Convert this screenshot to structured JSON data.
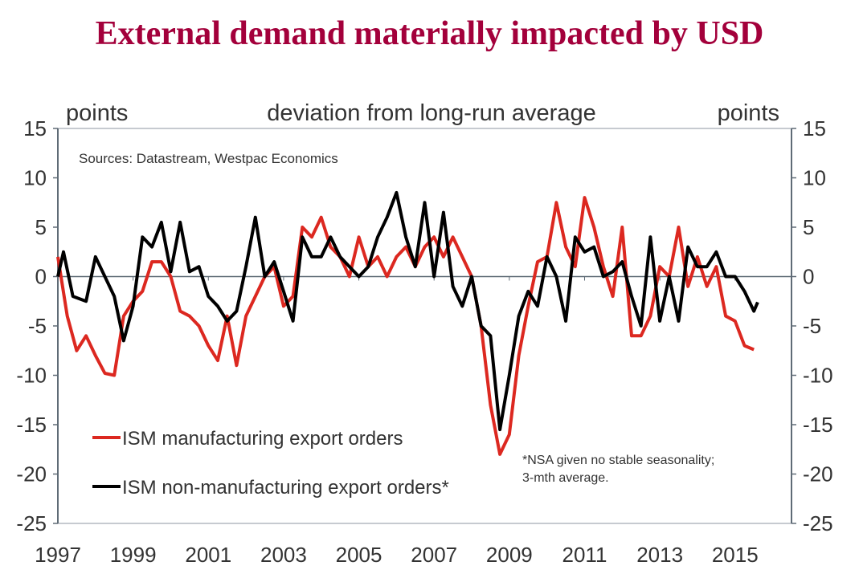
{
  "chart_data": {
    "type": "line",
    "title": "External demand materially impacted by USD",
    "ylabel_left": "points",
    "ylabel_right": "points",
    "subtitle": "deviation from long-run average",
    "source": "Sources: Datastream, Westpac Economics",
    "note_lines": [
      "*NSA given no stable seasonality;",
      "3-mth average."
    ],
    "xlim": [
      1997,
      2016.5
    ],
    "ylim": [
      -25,
      15
    ],
    "yticks": [
      15,
      10,
      5,
      0,
      -5,
      -10,
      -15,
      -20,
      -25
    ],
    "xticks": [
      1997,
      1999,
      2001,
      2003,
      2005,
      2007,
      2009,
      2011,
      2013,
      2015
    ],
    "grid": false,
    "legend_placement": "bottom-left",
    "series": [
      {
        "name": "ISM manufacturing export orders",
        "color": "#dc2820",
        "x": [
          1997,
          1997.25,
          1997.5,
          1997.75,
          1998,
          1998.25,
          1998.5,
          1998.75,
          1999,
          1999.25,
          1999.5,
          1999.75,
          2000,
          2000.25,
          2000.5,
          2000.75,
          2001,
          2001.25,
          2001.5,
          2001.75,
          2002,
          2002.25,
          2002.5,
          2002.75,
          2003,
          2003.25,
          2003.5,
          2003.75,
          2004,
          2004.25,
          2004.5,
          2004.75,
          2005,
          2005.25,
          2005.5,
          2005.75,
          2006,
          2006.25,
          2006.5,
          2006.75,
          2007,
          2007.25,
          2007.5,
          2007.75,
          2008,
          2008.25,
          2008.5,
          2008.75,
          2009,
          2009.25,
          2009.5,
          2009.75,
          2010,
          2010.25,
          2010.5,
          2010.75,
          2011,
          2011.25,
          2011.5,
          2011.75,
          2012,
          2012.25,
          2012.5,
          2012.75,
          2013,
          2013.25,
          2013.5,
          2013.75,
          2014,
          2014.25,
          2014.5,
          2014.75,
          2015,
          2015.25,
          2015.5
        ],
        "values": [
          2,
          -4,
          -7.5,
          -6,
          -8,
          -9.8,
          -10,
          -4,
          -2.5,
          -1.5,
          1.5,
          1.5,
          0,
          -3.5,
          -4,
          -5,
          -7,
          -8.5,
          -4,
          -9,
          -4,
          -2,
          0,
          1,
          -3,
          -2,
          5,
          4,
          6,
          3,
          2,
          0,
          4,
          1,
          2,
          0,
          2,
          3,
          1,
          3,
          4,
          2,
          4,
          2,
          0,
          -5,
          -13,
          -18,
          -16,
          -8,
          -3,
          1.5,
          2,
          7.5,
          3,
          1,
          8,
          5,
          1,
          -2,
          5,
          -6,
          -6,
          -4,
          1,
          0,
          5,
          -1,
          2,
          -1,
          1,
          -4,
          -4.5,
          -7,
          -7.4
        ]
      },
      {
        "name": "ISM non-manufacturing export orders*",
        "color": "#000000",
        "x": [
          1997,
          1997.15,
          1997.4,
          1997.75,
          1998,
          1998.25,
          1998.5,
          1998.75,
          1999,
          1999.25,
          1999.5,
          1999.75,
          2000,
          2000.25,
          2000.5,
          2000.75,
          2001,
          2001.25,
          2001.5,
          2001.75,
          2002,
          2002.25,
          2002.5,
          2002.75,
          2003,
          2003.25,
          2003.5,
          2003.75,
          2004,
          2004.25,
          2004.5,
          2004.75,
          2005,
          2005.25,
          2005.5,
          2005.75,
          2006,
          2006.25,
          2006.5,
          2006.75,
          2007,
          2007.25,
          2007.5,
          2007.75,
          2008,
          2008.25,
          2008.5,
          2008.75,
          2009,
          2009.25,
          2009.5,
          2009.75,
          2010,
          2010.25,
          2010.5,
          2010.75,
          2011,
          2011.25,
          2011.5,
          2011.75,
          2012,
          2012.25,
          2012.5,
          2012.75,
          2013,
          2013.25,
          2013.5,
          2013.75,
          2014,
          2014.25,
          2014.5,
          2014.75,
          2015,
          2015.25,
          2015.5,
          2015.6
        ],
        "values": [
          0,
          2.5,
          -2,
          -2.5,
          2,
          0,
          -2,
          -6.5,
          -3,
          4,
          3,
          5.5,
          0.5,
          5.5,
          0.5,
          1,
          -2,
          -3,
          -4.5,
          -3.5,
          1,
          6,
          0,
          1.5,
          -1.5,
          -4.5,
          4,
          2,
          2,
          4,
          2,
          1,
          0,
          1,
          4,
          6,
          8.5,
          4,
          1,
          7.5,
          0,
          6.5,
          -1,
          -3,
          0,
          -5,
          -6,
          -15.5,
          -10,
          -4,
          -1.5,
          -3,
          2,
          0,
          -4.5,
          4,
          2.5,
          3,
          0,
          0.5,
          1.5,
          -2,
          -5,
          4,
          -4.5,
          0,
          -4.5,
          3,
          1,
          1,
          2.5,
          0,
          0,
          -1.5,
          -3.5,
          -2.6
        ]
      }
    ]
  }
}
